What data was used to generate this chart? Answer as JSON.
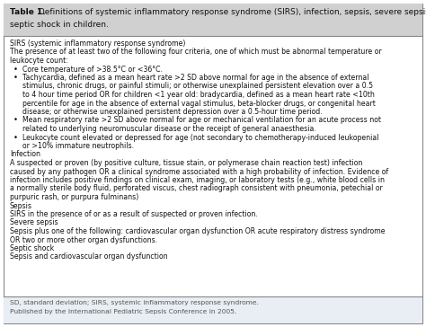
{
  "title_bold": "Table 1.",
  "title_rest": " Definitions of systemic inflammatory response syndrome (SIRS), infection, sepsis, severe sepsis and",
  "title_line2": "septic shock in children.",
  "background_color": "#ffffff",
  "border_color": "#888888",
  "title_bg": "#d0d0d0",
  "footer_bg": "#e8eef4",
  "content_bg": "#ffffff",
  "text_color": "#111111",
  "footer_color": "#555555",
  "footer_line1": "SD, standard deviation; SIRS, systemic inflammatory response syndrome.",
  "footer_line2": "Published by the International Pediatric Sepsis Conference in 2005."
}
